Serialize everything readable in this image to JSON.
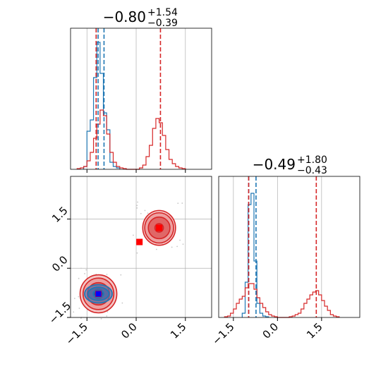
{
  "chart_data": [
    {
      "type": "histogram",
      "panel": "marginal-x",
      "title": {
        "main": "−0.80",
        "sup": "+1.54",
        "sub": "−0.39"
      },
      "xlim": [
        -2.0,
        2.3
      ],
      "ylim": [
        0,
        1
      ],
      "grid": true,
      "series": [
        {
          "color": "#1f77b4",
          "step": 0.1,
          "bins": [
            -1.6,
            -1.5,
            -1.4,
            -1.3,
            -1.2,
            -1.1,
            -1.0,
            -0.9,
            -0.8,
            -0.7,
            -0.6
          ],
          "counts": [
            0.02,
            0.27,
            0.35,
            0.65,
            0.9,
            0.68,
            0.4,
            0.28,
            0.05,
            0.02,
            0.01
          ],
          "quantiles": [
            -1.22,
            -1.16,
            -0.98
          ]
        },
        {
          "color": "#d62728",
          "step": 0.1,
          "bins": [
            -1.8,
            -1.7,
            -1.6,
            -1.5,
            -1.4,
            -1.3,
            -1.2,
            -1.1,
            -1.0,
            -0.9,
            -0.8,
            -0.7,
            -0.6,
            -0.5,
            -0.4,
            -0.3,
            -0.2,
            -0.1,
            0.0,
            0.1,
            0.2,
            0.3,
            0.4,
            0.5,
            0.6,
            0.7,
            0.8,
            0.9,
            1.0,
            1.1,
            1.2,
            1.3,
            1.4
          ],
          "counts": [
            0.005,
            0.01,
            0.02,
            0.06,
            0.12,
            0.22,
            0.32,
            0.42,
            0.38,
            0.25,
            0.12,
            0.05,
            0.02,
            0.01,
            0.005,
            0.0,
            0.0,
            0.0,
            0.0,
            0.01,
            0.03,
            0.09,
            0.17,
            0.29,
            0.36,
            0.33,
            0.24,
            0.14,
            0.07,
            0.04,
            0.02,
            0.01,
            0.005
          ],
          "quantiles": [
            -1.22,
            0.74
          ]
        }
      ],
      "xticks": [
        -1.5,
        0.0,
        1.5
      ]
    },
    {
      "type": "histogram",
      "panel": "marginal-y",
      "title": {
        "main": "−0.49",
        "sup": "+1.80",
        "sub": "−0.43"
      },
      "xlim": [
        -2.0,
        2.8
      ],
      "ylim": [
        0,
        1
      ],
      "grid": true,
      "xticks": [
        -1.5,
        0.0,
        1.5
      ],
      "xtick_labels": [
        "−1.5",
        "0.0",
        "1.5"
      ],
      "series": [
        {
          "color": "#1f77b4",
          "step": 0.1,
          "bins": [
            -1.2,
            -1.1,
            -1.0,
            -0.9,
            -0.8,
            -0.7,
            -0.6,
            -0.5,
            -0.4
          ],
          "counts": [
            0.03,
            0.25,
            0.8,
            0.88,
            0.4,
            0.1,
            0.03,
            0.01,
            0.005
          ],
          "quantiles": [
            -0.98,
            -0.73
          ]
        },
        {
          "color": "#d62728",
          "step": 0.1,
          "bins": [
            -1.8,
            -1.7,
            -1.6,
            -1.5,
            -1.4,
            -1.3,
            -1.2,
            -1.1,
            -1.0,
            -0.9,
            -0.8,
            -0.7,
            -0.6,
            -0.5,
            -0.4,
            -0.3,
            -0.2,
            -0.1,
            0.0,
            0.1,
            0.2,
            0.3,
            0.4,
            0.5,
            0.6,
            0.7,
            0.8,
            0.9,
            1.0,
            1.1,
            1.2,
            1.3,
            1.4,
            1.5,
            1.6,
            1.7,
            1.8,
            1.9,
            2.0
          ],
          "counts": [
            0.005,
            0.01,
            0.03,
            0.06,
            0.1,
            0.13,
            0.15,
            0.21,
            0.24,
            0.24,
            0.2,
            0.14,
            0.1,
            0.07,
            0.04,
            0.02,
            0.01,
            0.005,
            0.0,
            0.0,
            0.0,
            0.0,
            0.005,
            0.01,
            0.02,
            0.03,
            0.06,
            0.1,
            0.13,
            0.16,
            0.18,
            0.19,
            0.16,
            0.12,
            0.08,
            0.05,
            0.02,
            0.01,
            0.005
          ],
          "quantiles": [
            -0.98,
            1.32
          ]
        }
      ]
    },
    {
      "type": "contour",
      "panel": "joint",
      "xlim": [
        -2.0,
        2.3
      ],
      "ylim": [
        -1.5,
        2.8
      ],
      "grid": true,
      "xticks": [
        -1.5,
        0.0,
        1.5
      ],
      "yticks": [
        -1.5,
        0.0,
        1.5
      ],
      "xtick_labels": [
        "−1.5",
        "0.0",
        "1.5"
      ],
      "ytick_labels": [
        "−1.5",
        "0.0",
        "1.5"
      ],
      "red_modes": [
        {
          "center": [
            -1.15,
            -0.78
          ],
          "radii": [
            [
              0.56,
              0.58
            ],
            [
              0.47,
              0.48
            ],
            [
              0.34,
              0.34
            ],
            [
              0.15,
              0.15
            ]
          ]
        },
        {
          "center": [
            0.7,
            1.23
          ],
          "radii": [
            [
              0.5,
              0.53
            ],
            [
              0.44,
              0.46
            ],
            [
              0.33,
              0.33
            ],
            [
              0.13,
              0.13
            ]
          ]
        }
      ],
      "blue_mode": {
        "center": [
          -1.15,
          -0.78
        ],
        "radii": [
          [
            0.42,
            0.28
          ],
          [
            0.32,
            0.2
          ],
          [
            0.16,
            0.11
          ]
        ]
      },
      "markers": [
        {
          "x": 0.1,
          "y": 0.8,
          "color": "#ff0000"
        },
        {
          "x": 0.7,
          "y": 1.23,
          "color": "#ff0000"
        },
        {
          "x": -1.15,
          "y": -0.78,
          "color": "#ff0000"
        },
        {
          "x": -1.15,
          "y": -0.78,
          "color": "#0000ff"
        }
      ]
    }
  ],
  "colors": {
    "blue": "#1f77b4",
    "red": "#d62728",
    "grid": "#b0b0b0"
  }
}
